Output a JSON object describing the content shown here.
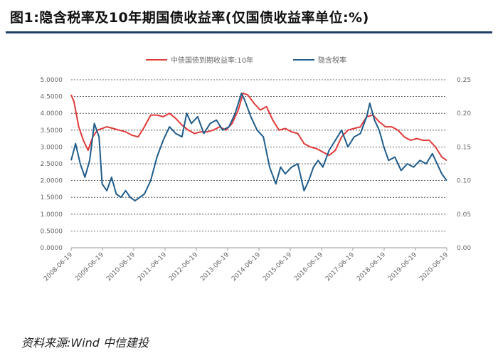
{
  "figure": {
    "title": "图1:隐含税率及10年期国债收益率(仅国债收益率单位:%)",
    "source": "资料来源:Wind 中信建投"
  },
  "chart_data": {
    "type": "line",
    "title": "",
    "legend_position": "top-center",
    "grid": true,
    "x_tick_labels": [
      "2008-06-19",
      "2009-06-19",
      "2010-06-19",
      "2011-06-19",
      "2012-06-19",
      "2013-06-19",
      "2014-06-19",
      "2015-06-19",
      "2016-06-19",
      "2017-06-19",
      "2018-06-19",
      "2019-06-19",
      "2020-06-19"
    ],
    "x_range": [
      2008.46,
      2020.46
    ],
    "y_left": {
      "range": [
        0,
        5
      ],
      "ticks": [
        "0.0000",
        "0.5000",
        "1.0000",
        "1.5000",
        "2.0000",
        "2.5000",
        "3.0000",
        "3.5000",
        "4.0000",
        "4.5000",
        "5.0000"
      ]
    },
    "y_right": {
      "range": [
        0,
        0.25
      ],
      "ticks": [
        "0.00",
        "0.05",
        "0.10",
        "0.15",
        "0.20",
        "0.25"
      ]
    },
    "series": [
      {
        "name": "中债国债到期收益率:10年",
        "axis": "left",
        "color": "#e03a3a",
        "x": [
          2008.46,
          2008.55,
          2008.7,
          2008.85,
          2009.0,
          2009.15,
          2009.3,
          2009.45,
          2009.6,
          2009.8,
          2010.0,
          2010.2,
          2010.4,
          2010.6,
          2010.8,
          2011.0,
          2011.2,
          2011.4,
          2011.6,
          2011.8,
          2012.0,
          2012.2,
          2012.4,
          2012.6,
          2012.8,
          2013.0,
          2013.2,
          2013.4,
          2013.6,
          2013.8,
          2013.95,
          2014.1,
          2014.3,
          2014.5,
          2014.7,
          2014.9,
          2015.1,
          2015.3,
          2015.5,
          2015.7,
          2015.9,
          2016.1,
          2016.3,
          2016.5,
          2016.7,
          2016.9,
          2017.1,
          2017.3,
          2017.5,
          2017.7,
          2017.9,
          2018.1,
          2018.3,
          2018.5,
          2018.7,
          2018.9,
          2019.1,
          2019.3,
          2019.5,
          2019.7,
          2019.9,
          2020.1,
          2020.3,
          2020.46
        ],
        "y": [
          4.55,
          4.35,
          3.6,
          3.2,
          2.9,
          3.3,
          3.5,
          3.55,
          3.6,
          3.55,
          3.5,
          3.45,
          3.35,
          3.3,
          3.6,
          3.95,
          3.95,
          3.9,
          4.0,
          3.85,
          3.65,
          3.5,
          3.4,
          3.45,
          3.45,
          3.5,
          3.6,
          3.5,
          3.7,
          4.1,
          4.6,
          4.55,
          4.3,
          4.1,
          4.2,
          3.8,
          3.5,
          3.55,
          3.45,
          3.4,
          3.1,
          3.0,
          2.95,
          2.85,
          2.75,
          2.9,
          3.3,
          3.5,
          3.55,
          3.6,
          3.9,
          3.95,
          3.75,
          3.6,
          3.6,
          3.5,
          3.3,
          3.2,
          3.25,
          3.2,
          3.2,
          3.0,
          2.7,
          2.6
        ]
      },
      {
        "name": "隐含税率",
        "axis": "right",
        "color": "#1f5c8b",
        "x": [
          2008.46,
          2008.6,
          2008.75,
          2008.9,
          2009.05,
          2009.2,
          2009.35,
          2009.45,
          2009.6,
          2009.75,
          2009.9,
          2010.05,
          2010.2,
          2010.35,
          2010.5,
          2010.65,
          2010.8,
          2011.0,
          2011.2,
          2011.4,
          2011.6,
          2011.8,
          2012.0,
          2012.15,
          2012.3,
          2012.5,
          2012.7,
          2012.9,
          2013.1,
          2013.3,
          2013.5,
          2013.7,
          2013.9,
          2014.0,
          2014.2,
          2014.4,
          2014.6,
          2014.8,
          2015.0,
          2015.15,
          2015.3,
          2015.5,
          2015.7,
          2015.9,
          2016.05,
          2016.2,
          2016.35,
          2016.5,
          2016.7,
          2016.9,
          2017.1,
          2017.3,
          2017.5,
          2017.7,
          2017.9,
          2018.0,
          2018.15,
          2018.3,
          2018.45,
          2018.6,
          2018.8,
          2019.0,
          2019.2,
          2019.4,
          2019.6,
          2019.8,
          2020.0,
          2020.15,
          2020.3,
          2020.46
        ],
        "y": [
          0.13,
          0.155,
          0.125,
          0.105,
          0.13,
          0.185,
          0.165,
          0.095,
          0.085,
          0.105,
          0.08,
          0.075,
          0.085,
          0.075,
          0.07,
          0.075,
          0.08,
          0.1,
          0.135,
          0.16,
          0.18,
          0.17,
          0.165,
          0.2,
          0.185,
          0.195,
          0.17,
          0.185,
          0.19,
          0.175,
          0.18,
          0.2,
          0.23,
          0.22,
          0.195,
          0.175,
          0.165,
          0.12,
          0.095,
          0.12,
          0.11,
          0.12,
          0.125,
          0.085,
          0.1,
          0.12,
          0.13,
          0.12,
          0.145,
          0.16,
          0.175,
          0.15,
          0.165,
          0.17,
          0.195,
          0.215,
          0.19,
          0.175,
          0.15,
          0.13,
          0.135,
          0.115,
          0.125,
          0.12,
          0.13,
          0.125,
          0.14,
          0.125,
          0.11,
          0.1
        ]
      }
    ]
  }
}
